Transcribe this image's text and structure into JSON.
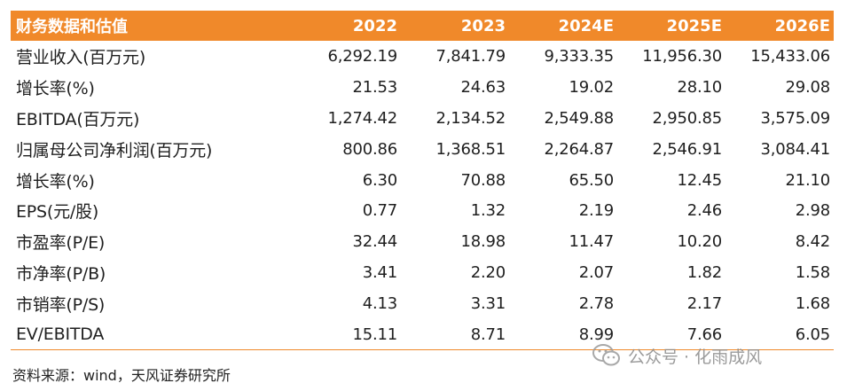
{
  "table": {
    "header": [
      "财务数据和估值",
      "2022",
      "2023",
      "2024E",
      "2025E",
      "2026E"
    ],
    "rows": [
      [
        "营业收入(百万元)",
        "6,292.19",
        "7,841.79",
        "9,333.35",
        "11,956.30",
        "15,433.06"
      ],
      [
        "增长率(%)",
        "21.53",
        "24.63",
        "19.02",
        "28.10",
        "29.08"
      ],
      [
        "EBITDA(百万元)",
        "1,274.42",
        "2,134.52",
        "2,549.88",
        "2,950.85",
        "3,575.09"
      ],
      [
        "归属母公司净利润(百万元)",
        "800.86",
        "1,368.51",
        "2,264.87",
        "2,546.91",
        "3,084.41"
      ],
      [
        "增长率(%)",
        "6.30",
        "70.88",
        "65.50",
        "12.45",
        "21.10"
      ],
      [
        "EPS(元/股)",
        "0.77",
        "1.32",
        "2.19",
        "2.46",
        "2.98"
      ],
      [
        "市盈率(P/E)",
        "32.44",
        "18.98",
        "11.47",
        "10.20",
        "8.42"
      ],
      [
        "市净率(P/B)",
        "3.41",
        "2.20",
        "2.07",
        "1.82",
        "1.58"
      ],
      [
        "市销率(P/S)",
        "4.13",
        "3.31",
        "2.78",
        "2.17",
        "1.68"
      ],
      [
        "EV/EBITDA",
        "15.11",
        "8.71",
        "8.99",
        "7.66",
        "6.05"
      ]
    ]
  },
  "source": "资料来源：wind，天风证券研究所",
  "watermark": {
    "text": "公众号 · 化雨成风",
    "icon": "wechat-icon"
  },
  "colors": {
    "header_bg": "#f0892a",
    "header_text": "#ffffff",
    "rule": "#f0892a"
  }
}
